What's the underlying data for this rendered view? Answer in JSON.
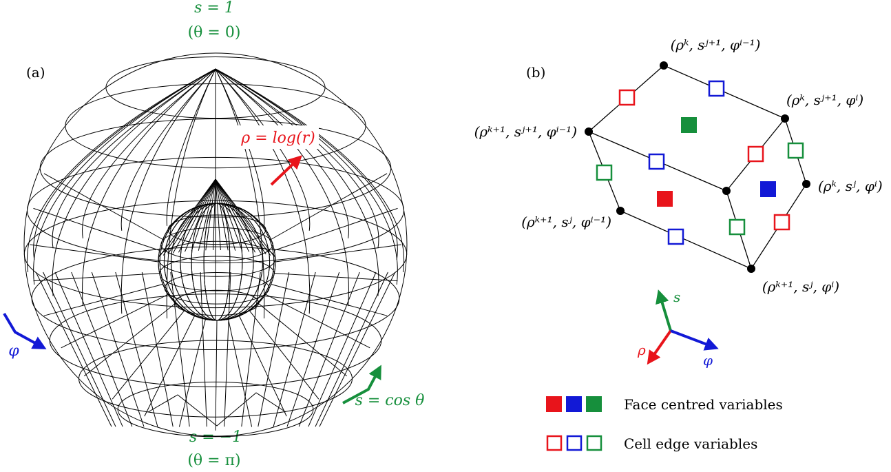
{
  "colors": {
    "green": "#168f3c",
    "red": "#e8141b",
    "blue": "#1219d6",
    "black": "#000000"
  },
  "panel_a": {
    "label": "(a)",
    "top_s": "s = 1",
    "top_theta": "(θ = 0)",
    "bottom_s": "s = −1",
    "bottom_theta": "(θ = π)",
    "rho_label": "ρ = log(r)",
    "phi_label": "φ",
    "s_label": "s = cos θ"
  },
  "panel_b": {
    "label": "(b)",
    "vertex_labels": {
      "top": "(ρᵏ, sʲ⁺¹, φⁱ⁻¹)",
      "upper_right": "(ρᵏ, sʲ⁺¹, φⁱ)",
      "left": "(ρᵏ⁺¹, sʲ⁺¹, φⁱ⁻¹)",
      "right": "(ρᵏ, sʲ, φⁱ)",
      "lower_left": "(ρᵏ⁺¹, sʲ, φⁱ⁻¹)",
      "bottom": "(ρᵏ⁺¹, sʲ, φⁱ)"
    },
    "axes": {
      "s": "s",
      "rho": "ρ",
      "phi": "φ"
    }
  },
  "legend": {
    "face_label": "Face centred variables",
    "edge_label": "Cell edge variables"
  }
}
